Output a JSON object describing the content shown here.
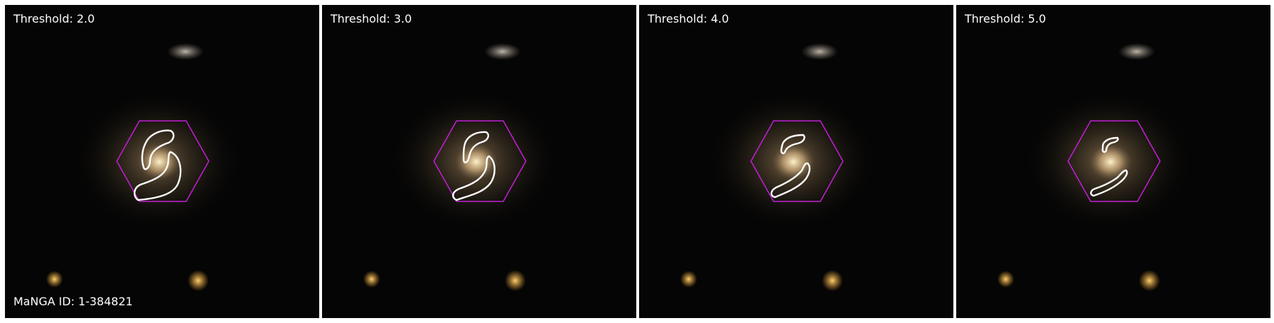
{
  "panels": [
    {
      "threshold_label": "Threshold: 2.0"
    },
    {
      "threshold_label": "Threshold: 3.0"
    },
    {
      "threshold_label": "Threshold: 4.0"
    },
    {
      "threshold_label": "Threshold: 5.0"
    }
  ],
  "manga_id_label": "MaNGA ID: 1-384821",
  "colors": {
    "background": "#050505",
    "hexagon": "#c21fd6",
    "contour": "#ffffff",
    "galaxy_core": "#fff2cc",
    "star": "#e8a030"
  }
}
